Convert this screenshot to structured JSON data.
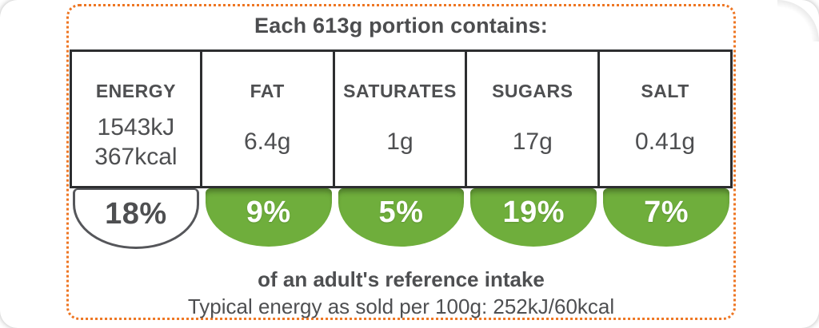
{
  "header": {
    "portion_text": "Each 613g portion contains:"
  },
  "nutrients": [
    {
      "name": "ENERGY",
      "value1": "1543kJ",
      "value2": "367kcal",
      "percent": "18%",
      "bubble": "white"
    },
    {
      "name": "FAT",
      "value1": "6.4g",
      "value2": "",
      "percent": "9%",
      "bubble": "green"
    },
    {
      "name": "SATURATES",
      "value1": "1g",
      "value2": "",
      "percent": "5%",
      "bubble": "green"
    },
    {
      "name": "SUGARS",
      "value1": "17g",
      "value2": "",
      "percent": "19%",
      "bubble": "green"
    },
    {
      "name": "SALT",
      "value1": "0.41g",
      "value2": "",
      "percent": "7%",
      "bubble": "green"
    }
  ],
  "footer": {
    "reference_line": "of an adult's reference intake",
    "typical_line": "Typical energy as sold per 100g: 252kJ/60kcal"
  },
  "colors": {
    "green": "#6fae3c",
    "dotted_border_orange": "#ee7623",
    "box_border": "#2d2e30",
    "text_gray": "#4e4f51"
  }
}
